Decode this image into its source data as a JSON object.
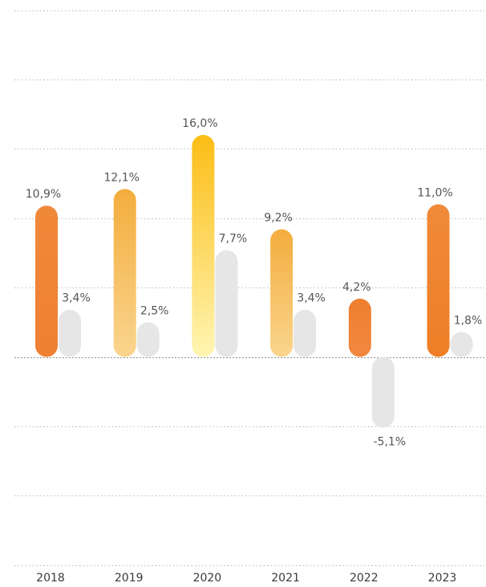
{
  "chart_data": {
    "type": "bar",
    "categories": [
      "2018",
      "2019",
      "2020",
      "2021",
      "2022",
      "2023"
    ],
    "series": [
      {
        "values": [
          10.9,
          12.1,
          16.0,
          9.2,
          4.2,
          11.0
        ],
        "labels": [
          "10,9%",
          "12,1%",
          "16,0%",
          "9,2%",
          "4,2%",
          "11,0%"
        ]
      },
      {
        "values": [
          3.4,
          2.5,
          7.7,
          3.4,
          -5.1,
          1.8
        ],
        "labels": [
          "3,4%",
          "2,5%",
          "7,7%",
          "3,4%",
          "-5,1%",
          "1,8%"
        ]
      }
    ],
    "primary_colors": [
      {
        "top": "#f0883a",
        "bottom": "#ef8033"
      },
      {
        "top": "#f3ad3d",
        "bottom": "#fad58e"
      },
      {
        "top": "#fbbd16",
        "bottom": "#fff5b2"
      },
      {
        "top": "#f3ad3d",
        "bottom": "#fad58e"
      },
      {
        "top": "#ef7f30",
        "bottom": "#f28840"
      },
      {
        "top": "#f08b3a",
        "bottom": "#ee7e26"
      }
    ],
    "secondary_color": "#e6e6e6",
    "ylim": [
      -15,
      25
    ],
    "grid": true,
    "gridline_step": 5
  }
}
